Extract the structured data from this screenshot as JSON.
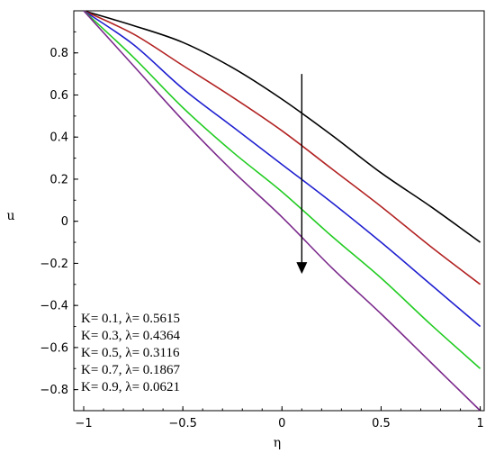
{
  "chart_data": {
    "type": "line",
    "title": "",
    "xlabel": "η",
    "ylabel": "u",
    "xlim": [
      -1.05,
      1.02
    ],
    "ylim": [
      -0.9,
      1.0
    ],
    "xticks": [
      -1,
      -0.5,
      0,
      0.5,
      1
    ],
    "xtick_labels": [
      "−1",
      "−0.5",
      "0",
      "0.5",
      "1"
    ],
    "yticks": [
      0.8,
      0.6,
      0.4,
      0.2,
      0,
      -0.2,
      -0.4,
      -0.6,
      -0.8
    ],
    "ytick_labels": [
      "0.8",
      "0.6",
      "0.4",
      "0.2",
      "0",
      "−0.2",
      "−0.4",
      "−0.6",
      "−0.8"
    ],
    "grid": false,
    "legend_position": "bottom-left",
    "annotation": "downward arrow indicating increasing K",
    "x": [
      -1,
      -0.75,
      -0.5,
      -0.25,
      0,
      0.25,
      0.5,
      0.75,
      1
    ],
    "series": [
      {
        "name": "K= 0.1, λ= 0.5615",
        "color": "#000000",
        "values": [
          1.0,
          0.93,
          0.85,
          0.73,
          0.58,
          0.41,
          0.23,
          0.07,
          -0.1
        ]
      },
      {
        "name": "K= 0.3, λ= 0.4364",
        "color": "#b22222",
        "values": [
          1.0,
          0.89,
          0.74,
          0.59,
          0.43,
          0.25,
          0.07,
          -0.12,
          -0.3
        ]
      },
      {
        "name": "K= 0.5, λ= 0.3116",
        "color": "#1f1fd0",
        "values": [
          1.0,
          0.84,
          0.63,
          0.45,
          0.27,
          0.09,
          -0.1,
          -0.3,
          -0.5
        ]
      },
      {
        "name": "K= 0.7, λ= 0.1867",
        "color": "#22cc22",
        "values": [
          1.0,
          0.78,
          0.54,
          0.33,
          0.14,
          -0.07,
          -0.27,
          -0.49,
          -0.7
        ]
      },
      {
        "name": "K= 0.9, λ= 0.0621",
        "color": "#7b2a8c",
        "values": [
          1.0,
          0.74,
          0.48,
          0.24,
          0.02,
          -0.22,
          -0.44,
          -0.67,
          -0.9
        ]
      }
    ],
    "arrow": {
      "x": 0.1,
      "y_start": 0.7,
      "y_end": -0.25
    }
  }
}
